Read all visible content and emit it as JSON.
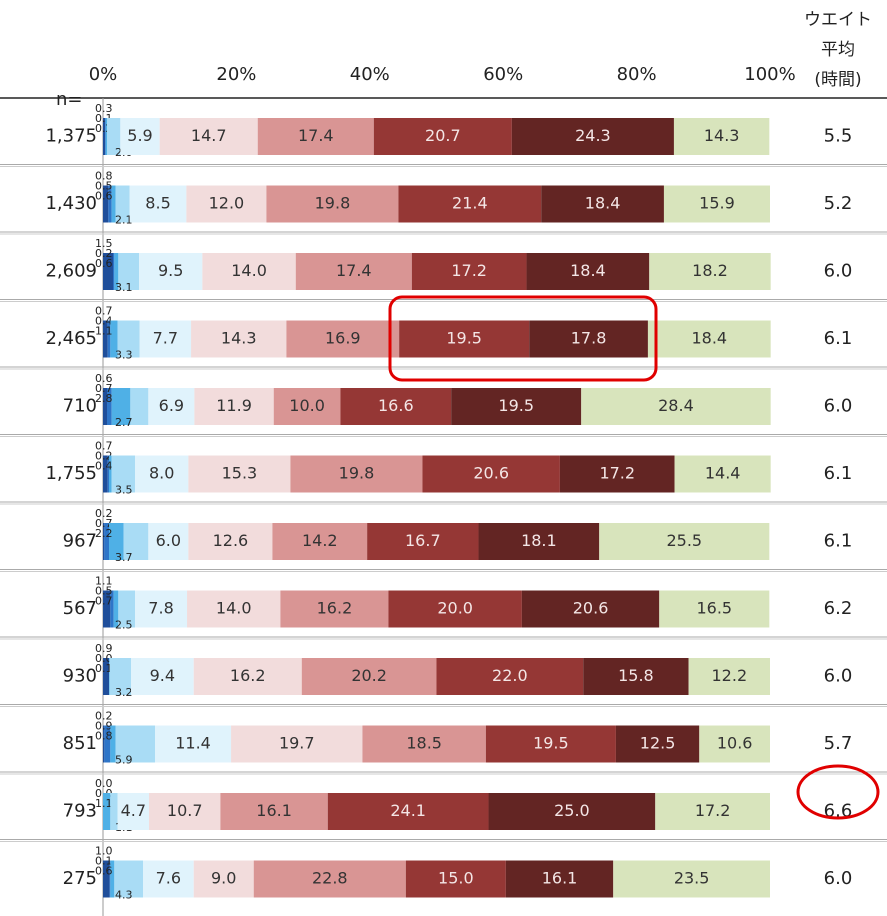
{
  "chart_data": {
    "type": "stacked-bar-horizontal",
    "n_label": "n=",
    "avg_title": [
      "ウエイト",
      "平均",
      "(時間)"
    ],
    "n_values": [
      1375,
      1430,
      2609,
      2465,
      710,
      1755,
      967,
      567,
      930,
      851,
      793,
      275
    ],
    "n_labels": [
      "1,375",
      "1,430",
      "2,609",
      "2,465",
      "710",
      "1,755",
      "967",
      "567",
      "930",
      "851",
      "793",
      "275"
    ],
    "avg_values": [
      5.5,
      5.2,
      6.0,
      6.1,
      6.0,
      6.1,
      6.1,
      6.2,
      6.0,
      5.7,
      6.6,
      6.0
    ],
    "avg_labels": [
      "5.5",
      "5.2",
      "6.0",
      "6.1",
      "6.0",
      "6.1",
      "6.1",
      "6.2",
      "6.0",
      "5.7",
      "6.6",
      "6.0"
    ],
    "xlim": [
      0,
      100
    ],
    "xticks": [
      {
        "value": 0,
        "label": "0%"
      },
      {
        "value": 20,
        "label": "20%"
      },
      {
        "value": 40,
        "label": "40%"
      },
      {
        "value": 60,
        "label": "60%"
      },
      {
        "value": 80,
        "label": "80%"
      },
      {
        "value": 100,
        "label": "100%"
      }
    ],
    "series": [
      {
        "color": "#1f4e9a",
        "values": [
          0.3,
          0.8,
          1.5,
          0.7,
          0.6,
          0.7,
          0.2,
          1.1,
          0.9,
          0.2,
          0.0,
          1.0
        ],
        "value_labels": [
          "0.3",
          "0.8",
          "1.5",
          "0.7",
          "0.6",
          "0.7",
          "0.2",
          "1.1",
          "0.9",
          "0.2",
          "0.0",
          "1.0"
        ]
      },
      {
        "color": "#2e75c8",
        "values": [
          0.1,
          0.5,
          0.2,
          0.4,
          0.7,
          0.2,
          0.7,
          0.5,
          0.0,
          0.9,
          0.0,
          0.1
        ],
        "value_labels": [
          "0.1",
          "0.5",
          "0.2",
          "0.4",
          "0.7",
          "0.2",
          "0.7",
          "0.5",
          "0.0",
          "0.9",
          "0.0",
          "0.1"
        ]
      },
      {
        "color": "#4fb0e6",
        "values": [
          0.2,
          0.6,
          0.6,
          1.1,
          2.8,
          0.4,
          2.2,
          0.7,
          0.1,
          0.8,
          1.1,
          0.6
        ],
        "value_labels": [
          "0.2",
          "0.6",
          "0.6",
          "1.1",
          "2.8",
          "0.4",
          "2.2",
          "0.7",
          "0.1",
          "0.8",
          "1.1",
          "0.6"
        ]
      },
      {
        "color": "#a9dcf5",
        "values": [
          2.0,
          2.1,
          3.1,
          3.3,
          2.7,
          3.5,
          3.7,
          2.5,
          3.2,
          5.9,
          1.1,
          4.3
        ],
        "value_labels": [
          "2.0",
          "2.1",
          "3.1",
          "3.3",
          "2.7",
          "3.5",
          "3.7",
          "2.5",
          "3.2",
          "5.9",
          "1.1",
          "4.3"
        ]
      },
      {
        "color": "#e0f3fc",
        "values": [
          5.9,
          8.5,
          9.5,
          7.7,
          6.9,
          8.0,
          6.0,
          7.8,
          9.4,
          11.4,
          4.7,
          7.6
        ],
        "value_labels": [
          "5.9",
          "8.5",
          "9.5",
          "7.7",
          "6.9",
          "8.0",
          "6.0",
          "7.8",
          "9.4",
          "11.4",
          "4.7",
          "7.6"
        ]
      },
      {
        "color": "#f2dcdc",
        "values": [
          14.7,
          12.0,
          14.0,
          14.3,
          11.9,
          15.3,
          12.6,
          14.0,
          16.2,
          19.7,
          10.7,
          9.0
        ],
        "value_labels": [
          "14.7",
          "12.0",
          "14.0",
          "14.3",
          "11.9",
          "15.3",
          "12.6",
          "14.0",
          "16.2",
          "19.7",
          "10.7",
          "9.0"
        ]
      },
      {
        "color": "#d99594",
        "values": [
          17.4,
          19.8,
          17.4,
          16.9,
          10.0,
          19.8,
          14.2,
          16.2,
          20.2,
          18.5,
          16.1,
          22.8
        ],
        "value_labels": [
          "17.4",
          "19.8",
          "17.4",
          "16.9",
          "10.0",
          "19.8",
          "14.2",
          "16.2",
          "20.2",
          "18.5",
          "16.1",
          "22.8"
        ]
      },
      {
        "color": "#953735",
        "values": [
          20.7,
          21.4,
          17.2,
          19.5,
          16.6,
          20.6,
          16.7,
          20.0,
          22.0,
          19.5,
          24.1,
          15.0
        ],
        "value_labels": [
          "20.7",
          "21.4",
          "17.2",
          "19.5",
          "16.6",
          "20.6",
          "16.7",
          "20.0",
          "22.0",
          "19.5",
          "24.1",
          "15.0"
        ]
      },
      {
        "color": "#632523",
        "values": [
          24.3,
          18.4,
          18.4,
          17.8,
          19.5,
          17.2,
          18.1,
          20.6,
          15.8,
          12.5,
          25.0,
          16.1
        ],
        "value_labels": [
          "24.3",
          "18.4",
          "18.4",
          "17.8",
          "19.5",
          "17.2",
          "18.1",
          "20.6",
          "15.8",
          "12.5",
          "25.0",
          "16.1"
        ]
      },
      {
        "color": "#d8e4bc",
        "values": [
          14.3,
          15.9,
          18.2,
          18.4,
          28.4,
          14.4,
          25.5,
          16.5,
          12.2,
          10.6,
          17.2,
          23.5
        ],
        "value_labels": [
          "14.3",
          "15.9",
          "18.2",
          "18.4",
          "28.4",
          "14.4",
          "25.5",
          "16.5",
          "12.2",
          "10.6",
          "17.2",
          "23.5"
        ]
      }
    ]
  }
}
